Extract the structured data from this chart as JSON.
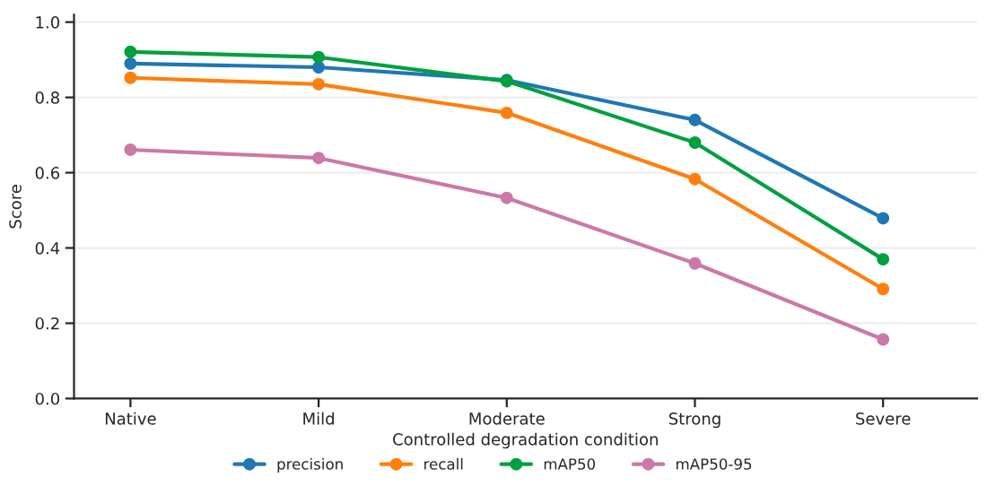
{
  "chart_data": {
    "type": "line",
    "xlabel": "Controlled degradation condition",
    "ylabel": "Score",
    "categories": [
      "Native",
      "Mild",
      "Moderate",
      "Strong",
      "Severe"
    ],
    "series": [
      {
        "name": "precision",
        "color": "#1f77b4",
        "values": [
          0.89,
          0.88,
          0.846,
          0.74,
          0.479
        ]
      },
      {
        "name": "recall",
        "color": "#ff7f0e",
        "values": [
          0.852,
          0.835,
          0.759,
          0.583,
          0.291
        ]
      },
      {
        "name": "mAP50",
        "color": "#00a040",
        "values": [
          0.921,
          0.907,
          0.843,
          0.68,
          0.37
        ]
      },
      {
        "name": "mAP50-95",
        "color": "#cc78a8",
        "values": [
          0.661,
          0.639,
          0.533,
          0.359,
          0.157
        ]
      }
    ],
    "ylim": [
      0,
      1.02
    ],
    "yticks": [
      {
        "value": 0,
        "label": "0.0"
      },
      {
        "value": 0.2,
        "label": "0.2"
      },
      {
        "value": 0.4,
        "label": "0.4"
      },
      {
        "value": 0.6,
        "label": "0.6"
      },
      {
        "value": 0.8,
        "label": "0.8"
      },
      {
        "value": 1.0,
        "label": "1.0"
      }
    ],
    "grid": "y",
    "legend": "bottom",
    "marker": "circle",
    "line_style": "solid"
  }
}
